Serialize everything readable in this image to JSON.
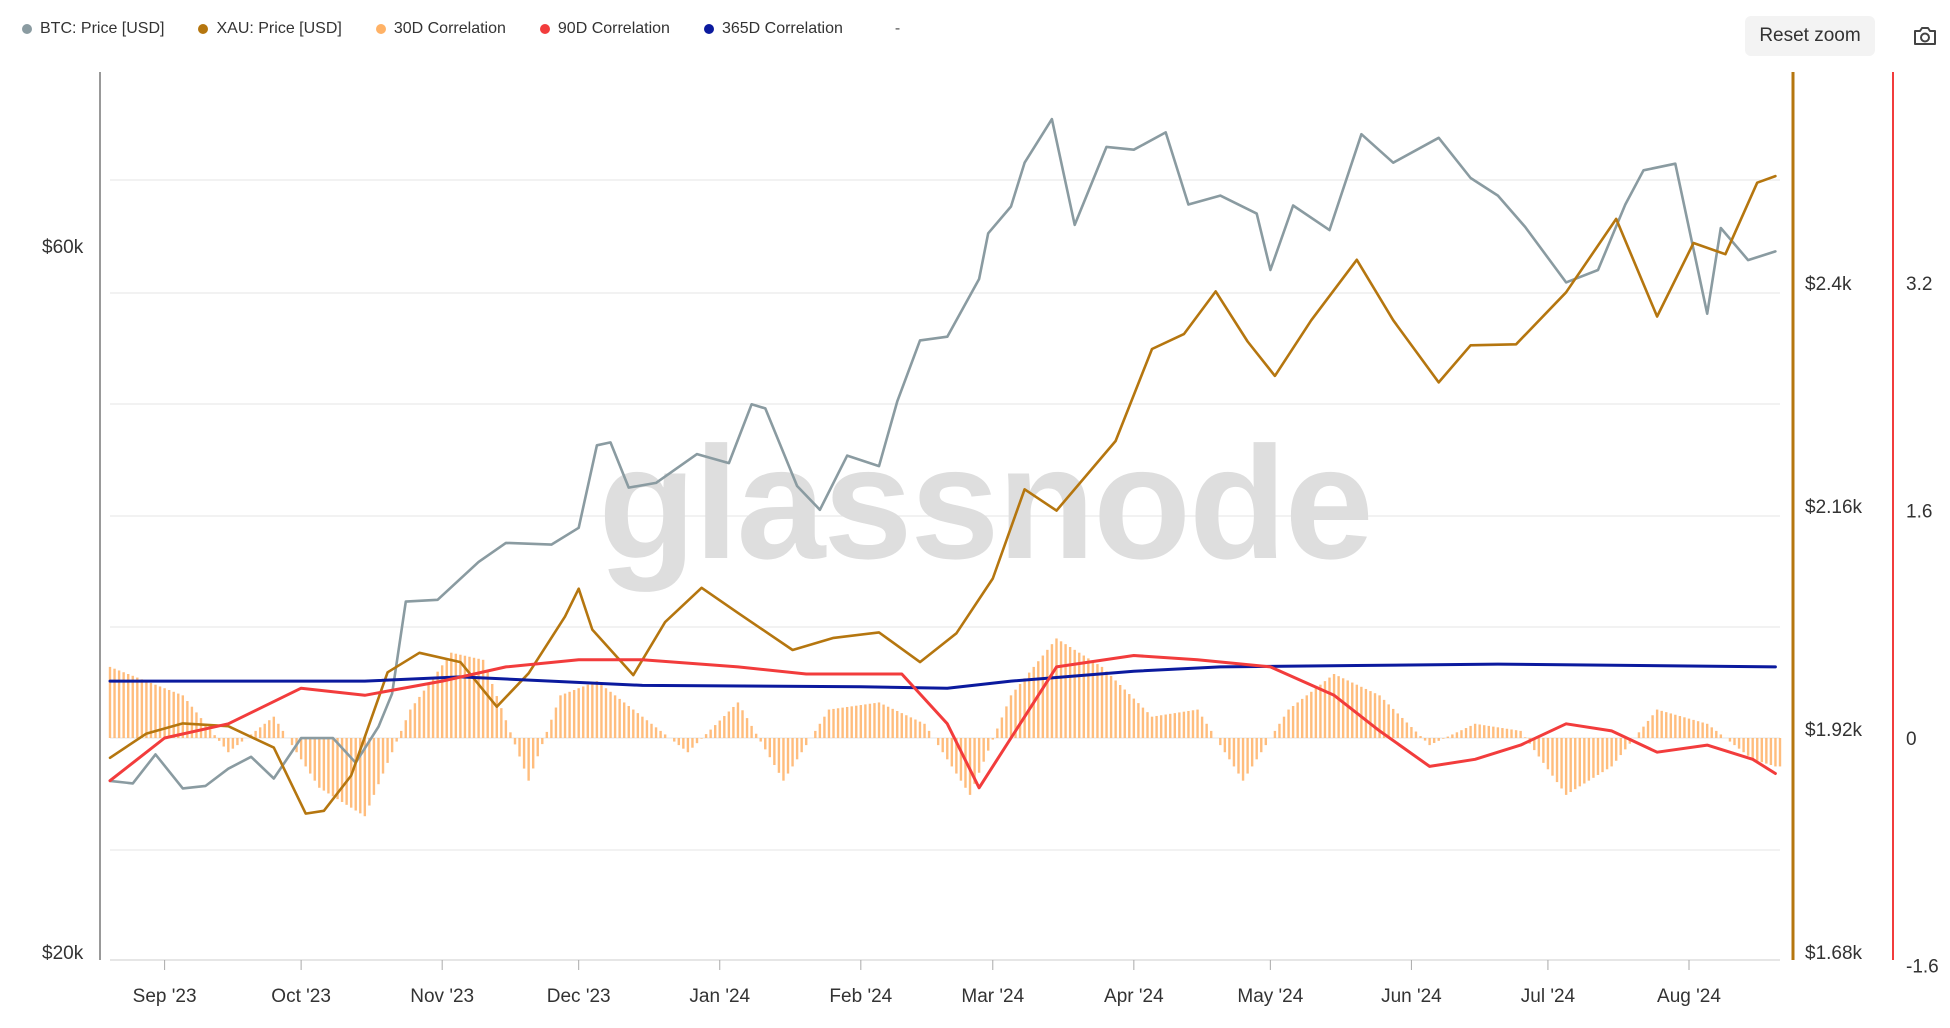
{
  "legend": [
    {
      "label": "BTC: Price [USD]",
      "color": "#8a9ba1"
    },
    {
      "label": "XAU: Price [USD]",
      "color": "#b5760f"
    },
    {
      "label": "30D Correlation",
      "color": "#ffb266"
    },
    {
      "label": "90D Correlation",
      "color": "#f23c3c"
    },
    {
      "label": "365D Correlation",
      "color": "#0b1a9e"
    }
  ],
  "legend_extra": "-",
  "reset_zoom_label": "Reset zoom",
  "camera_icon": "camera-icon",
  "watermark": "glassnode",
  "chart_data": {
    "type": "line",
    "x_range": [
      "2023-08-20",
      "2024-08-21"
    ],
    "x_ticks": [
      {
        "date": "2023-09-01",
        "label": "Sep '23"
      },
      {
        "date": "2023-10-01",
        "label": "Oct '23"
      },
      {
        "date": "2023-11-01",
        "label": "Nov '23"
      },
      {
        "date": "2023-12-01",
        "label": "Dec '23"
      },
      {
        "date": "2024-01-01",
        "label": "Jan '24"
      },
      {
        "date": "2024-02-01",
        "label": "Feb '24"
      },
      {
        "date": "2024-03-01",
        "label": "Mar '24"
      },
      {
        "date": "2024-04-01",
        "label": "Apr '24"
      },
      {
        "date": "2024-05-01",
        "label": "May '24"
      },
      {
        "date": "2024-06-01",
        "label": "Jun '24"
      },
      {
        "date": "2024-07-01",
        "label": "Jul '24"
      },
      {
        "date": "2024-08-01",
        "label": "Aug '24"
      }
    ],
    "axes": {
      "btc": {
        "labels": [
          {
            "value": 20000,
            "text": "$20k"
          },
          {
            "value": 60000,
            "text": "$60k"
          }
        ],
        "scale": "log",
        "range": [
          20000,
          60000
        ],
        "color": "#888888"
      },
      "xau": {
        "labels": [
          {
            "value": 1680,
            "text": "$1.68k"
          },
          {
            "value": 1920,
            "text": "$1.92k"
          },
          {
            "value": 2160,
            "text": "$2.16k"
          },
          {
            "value": 2400,
            "text": "$2.4k"
          }
        ],
        "scale": "linear",
        "range": [
          1680,
          2400
        ],
        "color": "#b5760f"
      },
      "corr": {
        "labels": [
          {
            "value": -1.6,
            "text": "-1.6"
          },
          {
            "value": 0,
            "text": "0"
          },
          {
            "value": 1.6,
            "text": "1.6"
          },
          {
            "value": 3.2,
            "text": "3.2"
          }
        ],
        "scale": "linear",
        "range": [
          -1.6,
          3.2
        ],
        "color": "#f23c3c"
      }
    },
    "series": [
      {
        "name": "BTC: Price [USD]",
        "axis": "btc",
        "color": "#8a9ba1",
        "kind": "line",
        "points": [
          [
            "2023-08-20",
            26100
          ],
          [
            "2023-08-25",
            26000
          ],
          [
            "2023-08-30",
            27200
          ],
          [
            "2023-09-05",
            25800
          ],
          [
            "2023-09-10",
            25900
          ],
          [
            "2023-09-15",
            26600
          ],
          [
            "2023-09-20",
            27100
          ],
          [
            "2023-09-25",
            26200
          ],
          [
            "2023-10-01",
            27900
          ],
          [
            "2023-10-08",
            27900
          ],
          [
            "2023-10-13",
            26850
          ],
          [
            "2023-10-18",
            28400
          ],
          [
            "2023-10-21",
            29900
          ],
          [
            "2023-10-24",
            34500
          ],
          [
            "2023-10-31",
            34600
          ],
          [
            "2023-11-09",
            36700
          ],
          [
            "2023-11-15",
            37800
          ],
          [
            "2023-11-25",
            37700
          ],
          [
            "2023-12-01",
            38700
          ],
          [
            "2023-12-05",
            44000
          ],
          [
            "2023-12-08",
            44200
          ],
          [
            "2023-12-12",
            41200
          ],
          [
            "2023-12-18",
            41500
          ],
          [
            "2023-12-27",
            43400
          ],
          [
            "2024-01-03",
            42800
          ],
          [
            "2024-01-08",
            46900
          ],
          [
            "2024-01-11",
            46600
          ],
          [
            "2024-01-18",
            41300
          ],
          [
            "2024-01-23",
            39800
          ],
          [
            "2024-01-29",
            43300
          ],
          [
            "2024-02-05",
            42600
          ],
          [
            "2024-02-09",
            47100
          ],
          [
            "2024-02-14",
            51800
          ],
          [
            "2024-02-20",
            52100
          ],
          [
            "2024-02-27",
            57000
          ],
          [
            "2024-02-29",
            61200
          ],
          [
            "2024-03-05",
            63800
          ],
          [
            "2024-03-08",
            68300
          ],
          [
            "2024-03-14",
            73100
          ],
          [
            "2024-03-19",
            62000
          ],
          [
            "2024-03-26",
            70000
          ],
          [
            "2024-04-01",
            69700
          ],
          [
            "2024-04-08",
            71600
          ],
          [
            "2024-04-13",
            64000
          ],
          [
            "2024-04-20",
            64900
          ],
          [
            "2024-04-28",
            63100
          ],
          [
            "2024-05-01",
            57800
          ],
          [
            "2024-05-06",
            63900
          ],
          [
            "2024-05-14",
            61500
          ],
          [
            "2024-05-21",
            71400
          ],
          [
            "2024-05-28",
            68300
          ],
          [
            "2024-06-07",
            71000
          ],
          [
            "2024-06-14",
            66700
          ],
          [
            "2024-06-20",
            64900
          ],
          [
            "2024-06-26",
            61800
          ],
          [
            "2024-07-05",
            56700
          ],
          [
            "2024-07-12",
            57800
          ],
          [
            "2024-07-18",
            64000
          ],
          [
            "2024-07-22",
            67500
          ],
          [
            "2024-07-29",
            68200
          ],
          [
            "2024-08-05",
            54000
          ],
          [
            "2024-08-08",
            61700
          ],
          [
            "2024-08-14",
            58700
          ],
          [
            "2024-08-20",
            59500
          ]
        ]
      },
      {
        "name": "XAU: Price [USD]",
        "axis": "xau",
        "color": "#b5760f",
        "kind": "line",
        "points": [
          [
            "2023-08-20",
            1889
          ],
          [
            "2023-08-28",
            1915
          ],
          [
            "2023-09-05",
            1926
          ],
          [
            "2023-09-15",
            1923
          ],
          [
            "2023-09-25",
            1900
          ],
          [
            "2023-10-02",
            1829
          ],
          [
            "2023-10-06",
            1832
          ],
          [
            "2023-10-12",
            1870
          ],
          [
            "2023-10-20",
            1981
          ],
          [
            "2023-10-27",
            2002
          ],
          [
            "2023-11-05",
            1992
          ],
          [
            "2023-11-13",
            1944
          ],
          [
            "2023-11-20",
            1980
          ],
          [
            "2023-11-28",
            2041
          ],
          [
            "2023-12-01",
            2071
          ],
          [
            "2023-12-04",
            2027
          ],
          [
            "2023-12-13",
            1978
          ],
          [
            "2023-12-20",
            2035
          ],
          [
            "2023-12-28",
            2072
          ],
          [
            "2024-01-05",
            2045
          ],
          [
            "2024-01-17",
            2005
          ],
          [
            "2024-01-26",
            2018
          ],
          [
            "2024-02-05",
            2024
          ],
          [
            "2024-02-14",
            1992
          ],
          [
            "2024-02-22",
            2023
          ],
          [
            "2024-03-01",
            2082
          ],
          [
            "2024-03-08",
            2178
          ],
          [
            "2024-03-15",
            2155
          ],
          [
            "2024-03-28",
            2230
          ],
          [
            "2024-04-05",
            2329
          ],
          [
            "2024-04-12",
            2345
          ],
          [
            "2024-04-19",
            2391
          ],
          [
            "2024-04-26",
            2337
          ],
          [
            "2024-05-02",
            2300
          ],
          [
            "2024-05-10",
            2360
          ],
          [
            "2024-05-20",
            2425
          ],
          [
            "2024-05-28",
            2360
          ],
          [
            "2024-06-07",
            2293
          ],
          [
            "2024-06-14",
            2333
          ],
          [
            "2024-06-24",
            2334
          ],
          [
            "2024-07-05",
            2390
          ],
          [
            "2024-07-16",
            2469
          ],
          [
            "2024-07-25",
            2364
          ],
          [
            "2024-08-02",
            2443
          ],
          [
            "2024-08-09",
            2431
          ],
          [
            "2024-08-16",
            2508
          ],
          [
            "2024-08-20",
            2515
          ]
        ]
      },
      {
        "name": "30D Correlation",
        "axis": "corr",
        "color": "#ffb266",
        "kind": "bars",
        "points": [
          [
            "2023-08-20",
            0.5
          ],
          [
            "2023-09-05",
            0.3
          ],
          [
            "2023-09-15",
            -0.1
          ],
          [
            "2023-09-25",
            0.15
          ],
          [
            "2023-10-05",
            -0.35
          ],
          [
            "2023-10-15",
            -0.55
          ],
          [
            "2023-10-25",
            0.2
          ],
          [
            "2023-11-03",
            0.6
          ],
          [
            "2023-11-10",
            0.55
          ],
          [
            "2023-11-20",
            -0.3
          ],
          [
            "2023-11-27",
            0.3
          ],
          [
            "2023-12-05",
            0.4
          ],
          [
            "2023-12-15",
            0.15
          ],
          [
            "2023-12-25",
            -0.1
          ],
          [
            "2024-01-05",
            0.25
          ],
          [
            "2024-01-15",
            -0.3
          ],
          [
            "2024-01-25",
            0.2
          ],
          [
            "2024-02-05",
            0.25
          ],
          [
            "2024-02-15",
            0.1
          ],
          [
            "2024-02-25",
            -0.4
          ],
          [
            "2024-03-05",
            0.3
          ],
          [
            "2024-03-15",
            0.7
          ],
          [
            "2024-03-25",
            0.5
          ],
          [
            "2024-04-05",
            0.15
          ],
          [
            "2024-04-15",
            0.2
          ],
          [
            "2024-04-25",
            -0.3
          ],
          [
            "2024-05-05",
            0.2
          ],
          [
            "2024-05-15",
            0.45
          ],
          [
            "2024-05-25",
            0.3
          ],
          [
            "2024-06-05",
            -0.05
          ],
          [
            "2024-06-15",
            0.1
          ],
          [
            "2024-06-25",
            0.05
          ],
          [
            "2024-07-05",
            -0.4
          ],
          [
            "2024-07-15",
            -0.2
          ],
          [
            "2024-07-25",
            0.2
          ],
          [
            "2024-08-05",
            0.1
          ],
          [
            "2024-08-15",
            -0.15
          ],
          [
            "2024-08-20",
            -0.2
          ]
        ]
      },
      {
        "name": "90D Correlation",
        "axis": "corr",
        "color": "#f23c3c",
        "kind": "line",
        "points": [
          [
            "2023-08-20",
            -0.3
          ],
          [
            "2023-09-01",
            0.0
          ],
          [
            "2023-09-15",
            0.1
          ],
          [
            "2023-10-01",
            0.35
          ],
          [
            "2023-10-15",
            0.3
          ],
          [
            "2023-11-01",
            0.4
          ],
          [
            "2023-11-15",
            0.5
          ],
          [
            "2023-12-01",
            0.55
          ],
          [
            "2023-12-15",
            0.55
          ],
          [
            "2024-01-05",
            0.5
          ],
          [
            "2024-01-20",
            0.45
          ],
          [
            "2024-02-10",
            0.45
          ],
          [
            "2024-02-20",
            0.1
          ],
          [
            "2024-02-27",
            -0.35
          ],
          [
            "2024-03-05",
            0.0
          ],
          [
            "2024-03-15",
            0.5
          ],
          [
            "2024-04-01",
            0.58
          ],
          [
            "2024-04-15",
            0.55
          ],
          [
            "2024-05-01",
            0.5
          ],
          [
            "2024-05-15",
            0.3
          ],
          [
            "2024-05-25",
            0.05
          ],
          [
            "2024-06-05",
            -0.2
          ],
          [
            "2024-06-15",
            -0.15
          ],
          [
            "2024-06-25",
            -0.05
          ],
          [
            "2024-07-05",
            0.1
          ],
          [
            "2024-07-15",
            0.05
          ],
          [
            "2024-07-25",
            -0.1
          ],
          [
            "2024-08-05",
            -0.05
          ],
          [
            "2024-08-15",
            -0.15
          ],
          [
            "2024-08-20",
            -0.25
          ]
        ]
      },
      {
        "name": "365D Correlation",
        "axis": "corr",
        "color": "#0b1a9e",
        "kind": "line",
        "points": [
          [
            "2023-08-20",
            0.4
          ],
          [
            "2023-10-15",
            0.4
          ],
          [
            "2023-11-05",
            0.43
          ],
          [
            "2023-12-15",
            0.37
          ],
          [
            "2024-02-01",
            0.36
          ],
          [
            "2024-02-20",
            0.35
          ],
          [
            "2024-03-05",
            0.4
          ],
          [
            "2024-04-01",
            0.47
          ],
          [
            "2024-04-20",
            0.5
          ],
          [
            "2024-05-20",
            0.51
          ],
          [
            "2024-06-20",
            0.52
          ],
          [
            "2024-08-20",
            0.5
          ]
        ]
      }
    ]
  }
}
